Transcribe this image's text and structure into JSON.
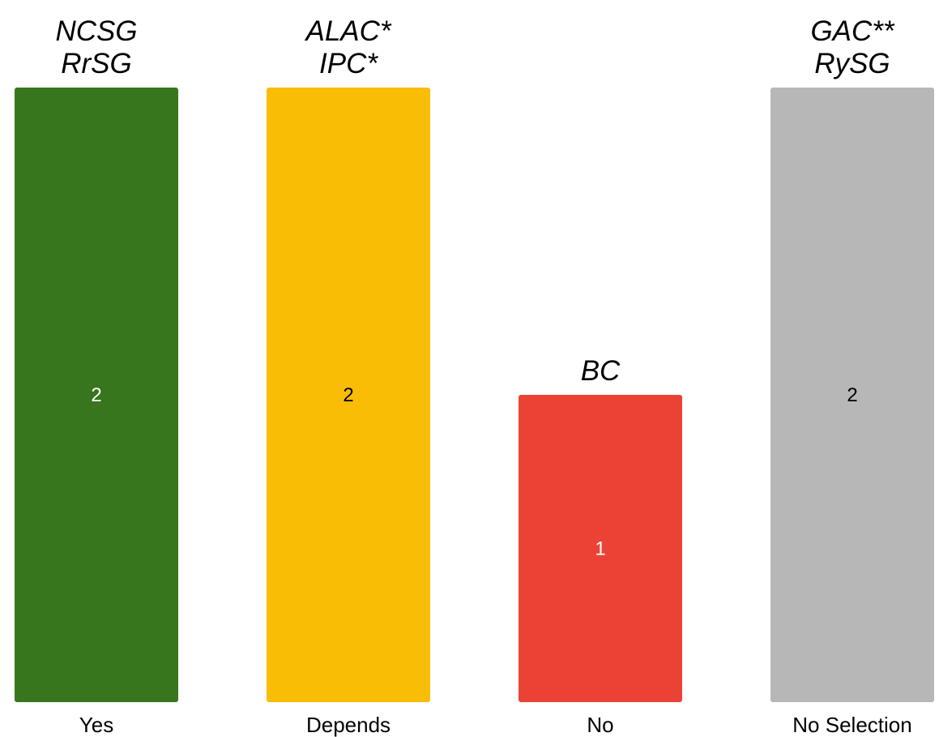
{
  "chart_data": {
    "type": "bar",
    "categories": [
      "Yes",
      "Depends",
      "No",
      "No Selection"
    ],
    "values": [
      2,
      2,
      1,
      2
    ],
    "ylim": [
      0,
      2
    ],
    "grid": false,
    "bar_colors": [
      "#38761d",
      "#f9bd06",
      "#ea4335",
      "#b7b7b7"
    ],
    "value_label_colors": [
      "#ffffff",
      "#000000",
      "#ffffff",
      "#000000"
    ],
    "group_labels": [
      [
        "NCSG",
        "RrSG"
      ],
      [
        "ALAC*",
        "IPC*"
      ],
      [
        "BC"
      ],
      [
        "GAC**",
        "RySG"
      ]
    ]
  }
}
